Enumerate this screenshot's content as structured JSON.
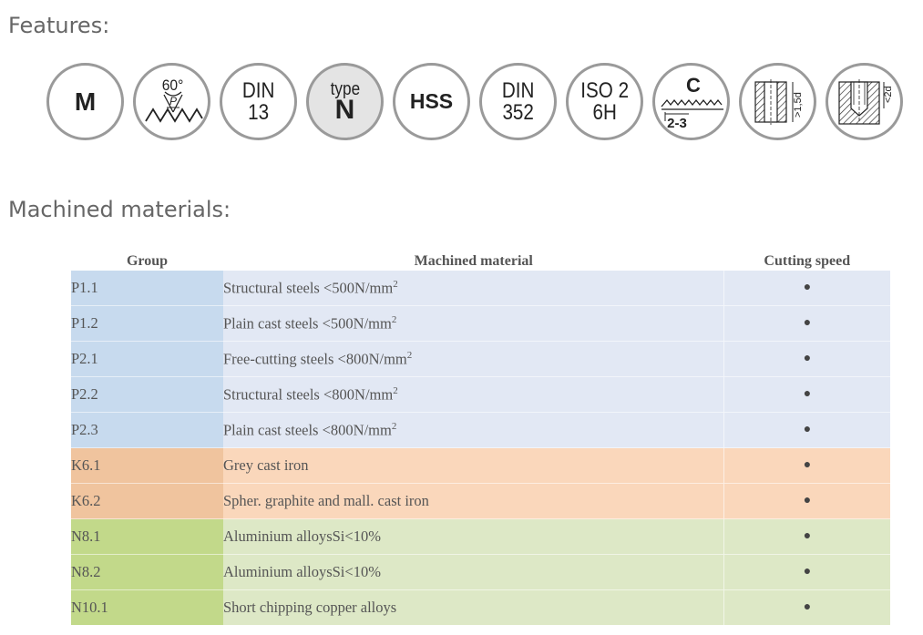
{
  "features": {
    "title": "Features:",
    "icons": [
      {
        "name": "metric-thread-icon",
        "line1": "M"
      },
      {
        "name": "thread-angle-icon",
        "angle": "60°",
        "pitch": "P"
      },
      {
        "name": "din13-icon",
        "line1": "DIN",
        "line2": "13"
      },
      {
        "name": "type-n-icon",
        "line1": "type",
        "line2": "N"
      },
      {
        "name": "hss-icon",
        "line1": "HSS"
      },
      {
        "name": "din352-icon",
        "line1": "DIN",
        "line2": "352"
      },
      {
        "name": "iso2-6h-icon",
        "line1": "ISO 2",
        "line2": "6H"
      },
      {
        "name": "chamfer-c-icon",
        "letter": "C",
        "range": "2-3"
      },
      {
        "name": "through-hole-icon",
        "label": ">1,5d"
      },
      {
        "name": "blind-hole-icon",
        "label": "<2d"
      }
    ]
  },
  "materials": {
    "title": "Machined materials:",
    "headers": {
      "group": "Group",
      "material": "Machined material",
      "speed": "Cutting speed"
    },
    "rows": [
      {
        "group": "P1.1",
        "material": "Structural steels <500N/mm",
        "sup": "2",
        "speed": "●",
        "category": "P"
      },
      {
        "group": "P1.2",
        "material": "Plain cast steels <500N/mm",
        "sup": "2",
        "speed": "●",
        "category": "P"
      },
      {
        "group": "P2.1",
        "material": "Free-cutting steels <800N/mm",
        "sup": "2",
        "speed": "●",
        "category": "P"
      },
      {
        "group": "P2.2",
        "material": "Structural steels <800N/mm",
        "sup": "2",
        "speed": "●",
        "category": "P"
      },
      {
        "group": "P2.3",
        "material": "Plain cast steels <800N/mm",
        "sup": "2",
        "speed": "●",
        "category": "P"
      },
      {
        "group": "K6.1",
        "material": "Grey cast iron",
        "sup": "",
        "speed": "●",
        "category": "K"
      },
      {
        "group": "K6.2",
        "material": "Spher. graphite and mall. cast iron",
        "sup": "",
        "speed": "●",
        "category": "K"
      },
      {
        "group": "N8.1",
        "material": "Aluminium alloysSi<10%",
        "sup": "",
        "speed": "●",
        "category": "N"
      },
      {
        "group": "N8.2",
        "material": "Aluminium alloysSi<10%",
        "sup": "",
        "speed": "●",
        "category": "N"
      },
      {
        "group": "N10.1",
        "material": "Short chipping copper alloys",
        "sup": "",
        "speed": "●",
        "category": "N"
      }
    ]
  },
  "colors": {
    "P": {
      "group": "#c7daee",
      "body": "#e2e8f4"
    },
    "K": {
      "group": "#f0c49e",
      "body": "#fad7bb"
    },
    "N": {
      "group": "#c2d98a",
      "body": "#dde8c6"
    }
  }
}
